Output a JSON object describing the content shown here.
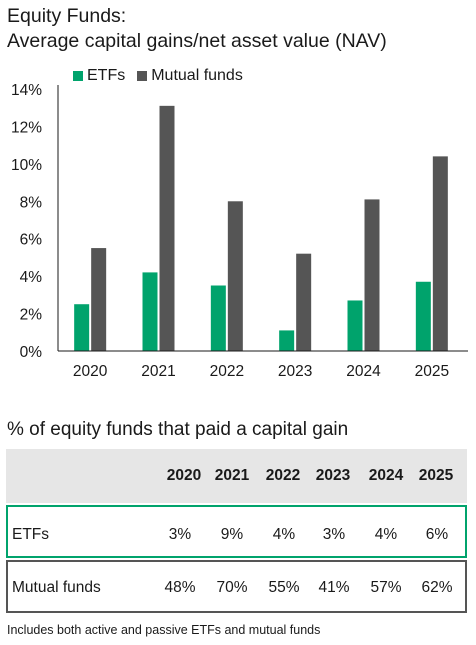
{
  "title_line1": "Equity Funds:",
  "title_line2": "Average capital gains/net asset value (NAV)",
  "colors": {
    "etf": "#00a36c",
    "mutual": "#555555",
    "text": "#1a1a1a"
  },
  "chart_data": {
    "type": "bar",
    "title": "Equity Funds: Average capital gains/net asset value (NAV)",
    "categories": [
      "2020",
      "2021",
      "2022",
      "2023",
      "2024",
      "2025"
    ],
    "series": [
      {
        "name": "ETFs",
        "values": [
          2.5,
          4.2,
          3.5,
          1.1,
          2.7,
          3.7
        ]
      },
      {
        "name": "Mutual funds",
        "values": [
          5.5,
          13.1,
          8.0,
          5.2,
          8.1,
          10.4
        ]
      }
    ],
    "yticks": [
      "0%",
      "2%",
      "4%",
      "6%",
      "8%",
      "10%",
      "12%",
      "14%"
    ],
    "ylim": [
      0,
      14
    ],
    "legend": "top-left",
    "grid": false
  },
  "table": {
    "title": "% of equity funds that paid a capital gain",
    "headers": [
      "2020",
      "2021",
      "2022",
      "2023",
      "2024",
      "2025"
    ],
    "rows": [
      {
        "label": "ETFs",
        "values": [
          "3%",
          "9%",
          "4%",
          "3%",
          "4%",
          "6%"
        ]
      },
      {
        "label": "Mutual funds",
        "values": [
          "48%",
          "70%",
          "55%",
          "41%",
          "57%",
          "62%"
        ]
      }
    ]
  },
  "footnote": "Includes both active and passive ETFs and mutual funds"
}
